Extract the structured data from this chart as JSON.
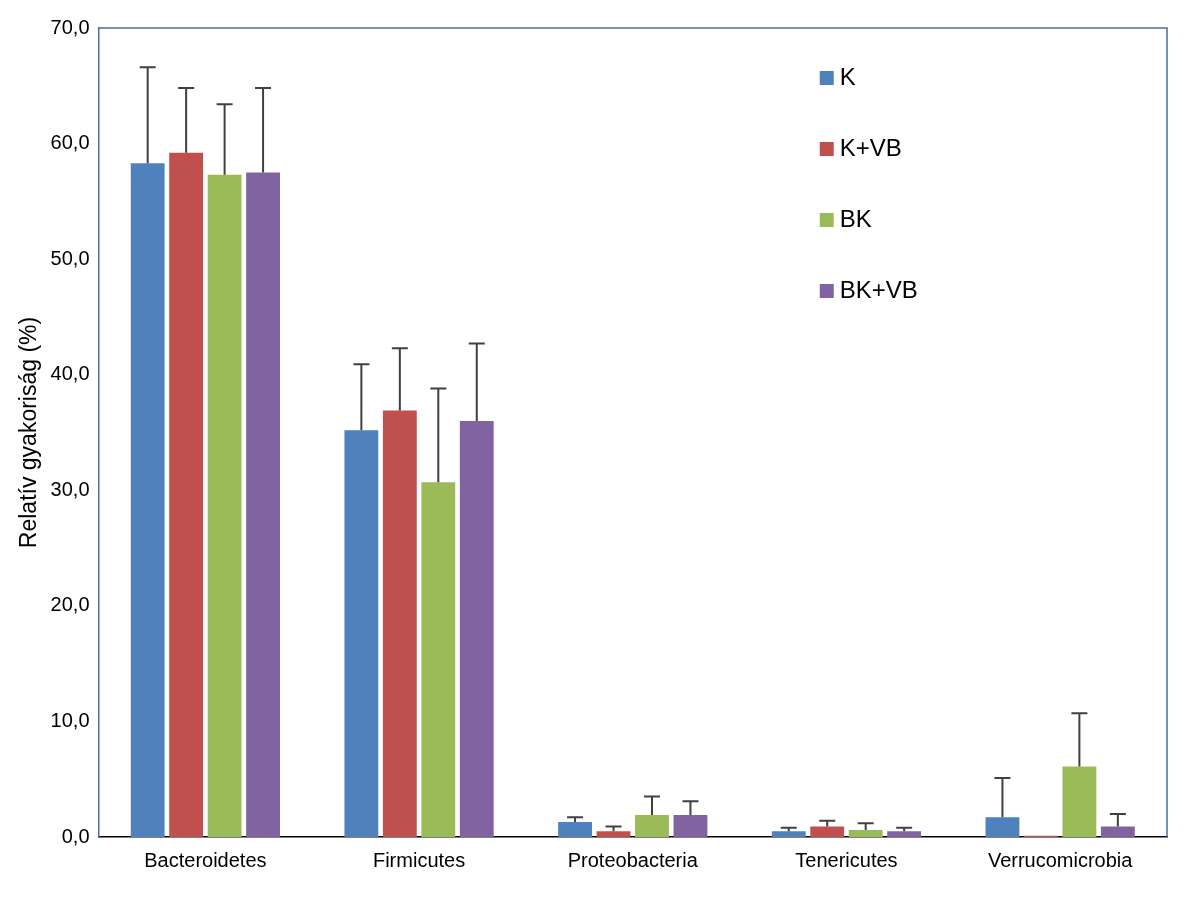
{
  "chart_data": {
    "type": "bar",
    "ylabel": "Relatív gyakoriság (%)",
    "categories": [
      "Bacteroidetes",
      "Firmicutes",
      "Proteobacteria",
      "Tenericutes",
      "Verrucomicrobia"
    ],
    "series": [
      {
        "name": "K",
        "color": "#4f81bd",
        "values": [
          58.3,
          35.2,
          1.3,
          0.5,
          1.7
        ],
        "errors": [
          [
            58.3,
            66.6
          ],
          [
            35.2,
            40.9
          ],
          [
            1.3,
            1.7
          ],
          [
            0.5,
            0.8
          ],
          [
            1.7,
            5.1
          ]
        ]
      },
      {
        "name": "K+VB",
        "color": "#c0504d",
        "values": [
          59.2,
          36.9,
          0.5,
          0.9,
          0.1
        ],
        "errors": [
          [
            59.2,
            64.8
          ],
          [
            36.9,
            42.3
          ],
          [
            0.5,
            0.9
          ],
          [
            0.9,
            1.4
          ],
          null
        ]
      },
      {
        "name": "BK",
        "color": "#9bbb59",
        "values": [
          57.3,
          30.7,
          1.9,
          0.6,
          6.1
        ],
        "errors": [
          [
            57.3,
            63.4
          ],
          [
            30.7,
            38.8
          ],
          [
            1.9,
            3.5
          ],
          [
            0.6,
            1.2
          ],
          [
            6.1,
            10.7
          ]
        ]
      },
      {
        "name": "BK+VB",
        "color": "#8064a2",
        "values": [
          57.5,
          36.0,
          1.9,
          0.5,
          0.9
        ],
        "errors": [
          [
            57.5,
            64.8
          ],
          [
            36.0,
            42.7
          ],
          [
            1.9,
            3.1
          ],
          [
            0.5,
            0.8
          ],
          [
            0.9,
            2.0
          ]
        ]
      }
    ],
    "ylim": [
      0,
      70
    ],
    "yticks": [
      {
        "value": 0,
        "label": "0,0"
      },
      {
        "value": 10,
        "label": "10,0"
      },
      {
        "value": 20,
        "label": "20,0"
      },
      {
        "value": 30,
        "label": "30,0"
      },
      {
        "value": 40,
        "label": "40,0"
      },
      {
        "value": 50,
        "label": "50,0"
      },
      {
        "value": 60,
        "label": "60,0"
      },
      {
        "value": 70,
        "label": "70,0"
      }
    ],
    "grid": false,
    "legend": "top right"
  }
}
